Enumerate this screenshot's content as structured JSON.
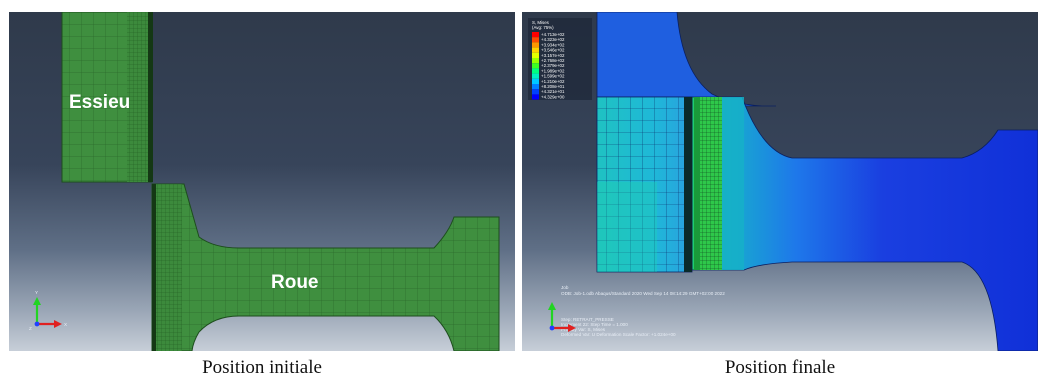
{
  "left_panel": {
    "caption": "Position initiale",
    "labels": {
      "axle": "Essieu",
      "wheel": "Roue"
    },
    "triad": {
      "y": "Y",
      "x": "X",
      "z": "Z"
    }
  },
  "right_panel": {
    "caption": "Position finale",
    "legend": {
      "title": "S, Mises",
      "subtitle": "(Avg: 75%)",
      "values": [
        "+4.713e+02",
        "+4.323e+02",
        "+3.934e+02",
        "+3.546e+02",
        "+3.157e+02",
        "+2.768e+02",
        "+2.379e+02",
        "+1.989e+02",
        "+1.599e+02",
        "+1.210e+02",
        "+8.208e+01",
        "+4.321e+01",
        "+4.329e+00"
      ],
      "colors": [
        "#ff0000",
        "#ff4a00",
        "#ff9600",
        "#ffd200",
        "#e4ff00",
        "#98ff00",
        "#3cff23",
        "#00ff80",
        "#00f0c0",
        "#00c8ff",
        "#0080ff",
        "#0040ff",
        "#0000ff"
      ]
    },
    "triad": {
      "y": "Y",
      "x": "X",
      "z": "Z"
    },
    "info": {
      "odb_line1": "Job",
      "odb_line2": "ODB: Job-1.odb    Abaqus/Standard 2020    Wed Sep 14 08:14:29 GMT+02:00 2022",
      "step": "Step: RETRAIT_PRESSE",
      "increment": "Increment    22: Step Time =    1.000",
      "primary": "Primary Var: S, Mises",
      "deformed": "Deformed Var: U   Deformation Scale Factor: +1.024e+00"
    }
  }
}
